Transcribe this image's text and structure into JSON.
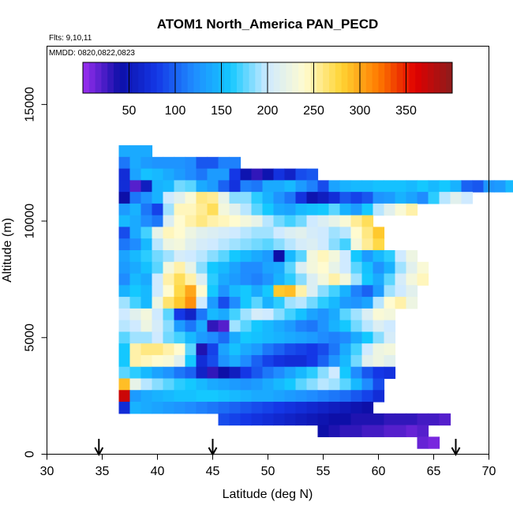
{
  "chart_data": {
    "type": "heatmap",
    "title": "ATOM1 North_America PAN_PECD",
    "annotations": {
      "flights": "Flts: 9,10,11",
      "dates": "MMDD: 0820,0822,0823"
    },
    "xlabel": "Latitude (deg N)",
    "ylabel": "Altitude (m)",
    "xlim": [
      30,
      70
    ],
    "ylim": [
      0,
      17500
    ],
    "x_ticks": [
      30,
      35,
      40,
      45,
      50,
      55,
      60,
      65,
      70
    ],
    "y_ticks": [
      0,
      5000,
      10000,
      15000
    ],
    "colorbar": {
      "range": [
        0,
        400
      ],
      "ticks": [
        50,
        100,
        150,
        200,
        250,
        300,
        350
      ],
      "colors": [
        "#9c2ff0",
        "#0d0fa8",
        "#1437e6",
        "#1f8cff",
        "#14c8ff",
        "#cfeaff",
        "#fffbd0",
        "#ffd433",
        "#ff7a00",
        "#e00000",
        "#8c1c1c"
      ]
    },
    "grid": "1 deg latitude x 500 m altitude",
    "grid_lat_start": 35,
    "grid_alt_start": 500,
    "rows": [
      {
        "alt": 13000,
        "lat_start": 37,
        "values": [
          140,
          140,
          140
        ]
      },
      {
        "alt": 12500,
        "lat_start": 37,
        "values": [
          110,
          140,
          130,
          125,
          125,
          125,
          120,
          95,
          95,
          115,
          115
        ]
      },
      {
        "alt": 12000,
        "lat_start": 37,
        "values": [
          70,
          135,
          155,
          150,
          140,
          130,
          120,
          110,
          130,
          130,
          80,
          45,
          30,
          45,
          75,
          60,
          90,
          95
        ]
      },
      {
        "alt": 11500,
        "lat_start": 37,
        "values": [
          70,
          20,
          55,
          145,
          150,
          180,
          175,
          140,
          130,
          100,
          75,
          115,
          110,
          140,
          140,
          150,
          130,
          115,
          90,
          135,
          145,
          150,
          150,
          155,
          155,
          155,
          150,
          160,
          150,
          160,
          145,
          100,
          95,
          125,
          130,
          150
        ]
      },
      {
        "alt": 11000,
        "lat_start": 37,
        "values": [
          40,
          110,
          125,
          145,
          200,
          215,
          235,
          260,
          255,
          220,
          185,
          185,
          165,
          145,
          125,
          110,
          75,
          45,
          55,
          70,
          95,
          85,
          95,
          125,
          130,
          145,
          135,
          120,
          165,
          195,
          215,
          200
        ]
      },
      {
        "alt": 10500,
        "lat_start": 37,
        "values": [
          130,
          145,
          110,
          85,
          190,
          245,
          245,
          255,
          270,
          230,
          215,
          195,
          175,
          160,
          140,
          135,
          150,
          155,
          160,
          175,
          145,
          130,
          160,
          195,
          215,
          235,
          250
        ]
      },
      {
        "alt": 10000,
        "lat_start": 37,
        "values": [
          150,
          140,
          120,
          110,
          210,
          240,
          250,
          260,
          250,
          245,
          240,
          230,
          220,
          195,
          180,
          170,
          180,
          200,
          210,
          220,
          235,
          255,
          270
        ]
      },
      {
        "alt": 9500,
        "lat_start": 37,
        "values": [
          90,
          140,
          170,
          220,
          245,
          240,
          225,
          215,
          210,
          205,
          200,
          195,
          190,
          190,
          200,
          210,
          215,
          205,
          200,
          190,
          195,
          240,
          260,
          285
        ]
      },
      {
        "alt": 9000,
        "lat_start": 37,
        "values": [
          110,
          120,
          150,
          195,
          225,
          230,
          215,
          205,
          200,
          195,
          190,
          185,
          180,
          175,
          185,
          195,
          205,
          210,
          200,
          185,
          170,
          230,
          255,
          275
        ]
      },
      {
        "alt": 8500,
        "lat_start": 37,
        "values": [
          135,
          150,
          165,
          180,
          190,
          205,
          200,
          195,
          185,
          175,
          160,
          150,
          140,
          130,
          40,
          150,
          175,
          230,
          245,
          230,
          200,
          160,
          130,
          150,
          165,
          200,
          225
        ]
      },
      {
        "alt": 8000,
        "lat_start": 37,
        "values": [
          130,
          140,
          155,
          175,
          230,
          250,
          220,
          185,
          160,
          150,
          135,
          120,
          120,
          135,
          140,
          175,
          210,
          230,
          240,
          220,
          200,
          175,
          155,
          125,
          145,
          190,
          215,
          235
        ]
      },
      {
        "alt": 7500,
        "lat_start": 37,
        "values": [
          120,
          150,
          140,
          200,
          250,
          270,
          250,
          210,
          165,
          140,
          130,
          120,
          115,
          125,
          145,
          165,
          185,
          210,
          230,
          250,
          230,
          190,
          160,
          140,
          175,
          205,
          230,
          245
        ]
      },
      {
        "alt": 7000,
        "lat_start": 37,
        "values": [
          145,
          160,
          150,
          200,
          240,
          275,
          300,
          240,
          160,
          125,
          150,
          160,
          140,
          160,
          285,
          290,
          250,
          210,
          185,
          170,
          145,
          115,
          100,
          130,
          190,
          200,
          215
        ]
      },
      {
        "alt": 6500,
        "lat_start": 37,
        "values": [
          190,
          170,
          150,
          225,
          265,
          285,
          310,
          200,
          130,
          90,
          120,
          160,
          175,
          145,
          165,
          190,
          195,
          180,
          165,
          150,
          130,
          125,
          135,
          195,
          240,
          250,
          225
        ]
      },
      {
        "alt": 6000,
        "lat_start": 37,
        "values": [
          200,
          215,
          230,
          200,
          175,
          80,
          60,
          110,
          150,
          140,
          170,
          190,
          205,
          200,
          185,
          170,
          155,
          135,
          125,
          140,
          175,
          190,
          210,
          235,
          230
        ]
      },
      {
        "alt": 5500,
        "lat_start": 37,
        "values": [
          195,
          200,
          225,
          205,
          185,
          130,
          110,
          140,
          30,
          20,
          190,
          175,
          160,
          150,
          140,
          130,
          115,
          110,
          125,
          145,
          160,
          180,
          195,
          210,
          200
        ]
      },
      {
        "alt": 5000,
        "lat_start": 37,
        "values": [
          175,
          190,
          190,
          200,
          180,
          170,
          150,
          130,
          120,
          105,
          140,
          160,
          155,
          150,
          145,
          140,
          135,
          130,
          120,
          115,
          120,
          140,
          160,
          185,
          205
        ]
      },
      {
        "alt": 4500,
        "lat_start": 37,
        "values": [
          160,
          250,
          260,
          260,
          250,
          240,
          175,
          35,
          85,
          135,
          155,
          140,
          130,
          110,
          100,
          90,
          85,
          80,
          90,
          110,
          140,
          170,
          200,
          225,
          230
        ]
      },
      {
        "alt": 4000,
        "lat_start": 37,
        "values": [
          160,
          250,
          245,
          240,
          235,
          215,
          160,
          70,
          90,
          125,
          140,
          120,
          100,
          85,
          75,
          70,
          70,
          80,
          100,
          125,
          150,
          180,
          215,
          225,
          215
        ]
      },
      {
        "alt": 3500,
        "lat_start": 37,
        "values": [
          175,
          165,
          150,
          135,
          125,
          110,
          100,
          60,
          30,
          40,
          55,
          80,
          95,
          110,
          120,
          135,
          150,
          165,
          185,
          200,
          160,
          120,
          95,
          80,
          75
        ]
      },
      {
        "alt": 3000,
        "lat_start": 37,
        "values": [
          290,
          220,
          195,
          185,
          175,
          165,
          160,
          150,
          140,
          135,
          130,
          125,
          130,
          140,
          150,
          160,
          175,
          185,
          195,
          190,
          175,
          150,
          120,
          90
        ]
      },
      {
        "alt": 2500,
        "lat_start": 37,
        "values": [
          370,
          130,
          140,
          145,
          150,
          155,
          155,
          160,
          160,
          155,
          150,
          145,
          140,
          140,
          135,
          130,
          125,
          120,
          115,
          110,
          105,
          95,
          85,
          70
        ]
      },
      {
        "alt": 2000,
        "lat_start": 37,
        "values": [
          70,
          145,
          140,
          135,
          130,
          125,
          120,
          115,
          110,
          105,
          100,
          95,
          90,
          85,
          80,
          75,
          70,
          65,
          60,
          55,
          50,
          45,
          40
        ]
      },
      {
        "alt": 1500,
        "lat_start": 46,
        "values": [
          90,
          85,
          80,
          75,
          70,
          65,
          60,
          55,
          50,
          45,
          40,
          40,
          35,
          35,
          35,
          30,
          30,
          30,
          25,
          25,
          20
        ]
      },
      {
        "alt": 1000,
        "lat_start": 55,
        "values": [
          40,
          35,
          30,
          30,
          25,
          25,
          20,
          20,
          15,
          20
        ]
      },
      {
        "alt": 500,
        "lat_start": 64,
        "values": [
          15,
          10
        ]
      }
    ],
    "arrows_lat": [
      34.7,
      45.0,
      67.0
    ]
  }
}
